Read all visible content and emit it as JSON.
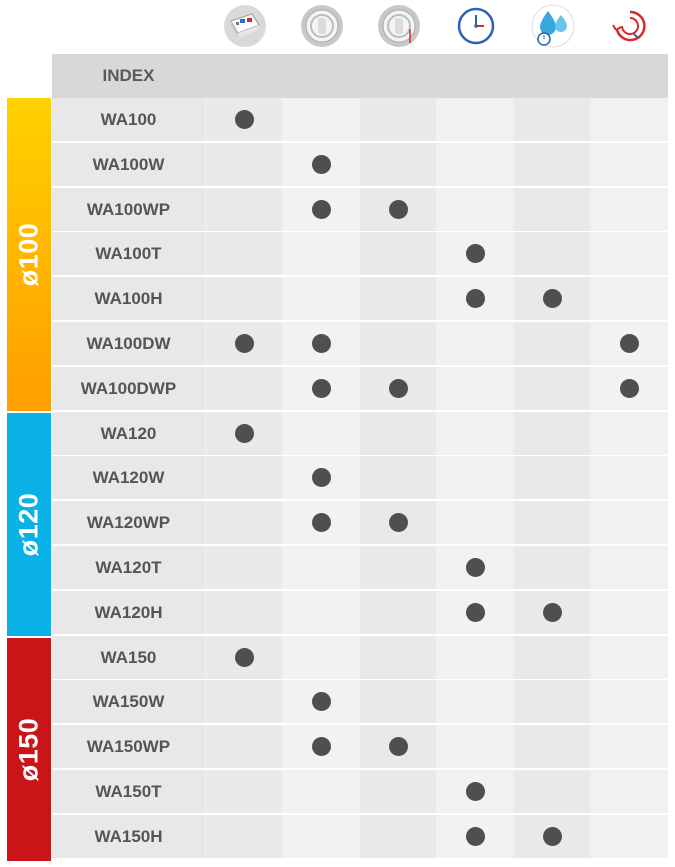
{
  "header": {
    "index_label": "INDEX"
  },
  "icons": [
    {
      "name": "wall-installation-icon"
    },
    {
      "name": "fan-white-icon"
    },
    {
      "name": "fan-pullcord-icon"
    },
    {
      "name": "timer-clock-icon"
    },
    {
      "name": "humidity-sensor-icon"
    },
    {
      "name": "backdraft-shutter-icon"
    }
  ],
  "groups": [
    {
      "label": "ø100",
      "color": "#ffb400"
    },
    {
      "label": "ø120",
      "color": "#0ab1e7"
    },
    {
      "label": "ø150",
      "color": "#c91518"
    }
  ],
  "rows": [
    {
      "name": "WA100",
      "features": [
        1,
        0,
        0,
        0,
        0,
        0
      ]
    },
    {
      "name": "WA100W",
      "features": [
        0,
        1,
        0,
        0,
        0,
        0
      ]
    },
    {
      "name": "WA100WP",
      "features": [
        0,
        1,
        1,
        0,
        0,
        0
      ]
    },
    {
      "name": "WA100T",
      "features": [
        0,
        0,
        0,
        1,
        0,
        0
      ]
    },
    {
      "name": "WA100H",
      "features": [
        0,
        0,
        0,
        1,
        1,
        0
      ]
    },
    {
      "name": "WA100DW",
      "features": [
        1,
        1,
        0,
        0,
        0,
        1
      ]
    },
    {
      "name": "WA100DWP",
      "features": [
        0,
        1,
        1,
        0,
        0,
        1
      ]
    },
    {
      "name": "WA120",
      "features": [
        1,
        0,
        0,
        0,
        0,
        0
      ]
    },
    {
      "name": "WA120W",
      "features": [
        0,
        1,
        0,
        0,
        0,
        0
      ]
    },
    {
      "name": "WA120WP",
      "features": [
        0,
        1,
        1,
        0,
        0,
        0
      ]
    },
    {
      "name": "WA120T",
      "features": [
        0,
        0,
        0,
        1,
        0,
        0
      ]
    },
    {
      "name": "WA120H",
      "features": [
        0,
        0,
        0,
        1,
        1,
        0
      ]
    },
    {
      "name": "WA150",
      "features": [
        1,
        0,
        0,
        0,
        0,
        0
      ]
    },
    {
      "name": "WA150W",
      "features": [
        0,
        1,
        0,
        0,
        0,
        0
      ]
    },
    {
      "name": "WA150WP",
      "features": [
        0,
        1,
        1,
        0,
        0,
        0
      ]
    },
    {
      "name": "WA150T",
      "features": [
        0,
        0,
        0,
        1,
        0,
        0
      ]
    },
    {
      "name": "WA150H",
      "features": [
        0,
        0,
        0,
        1,
        1,
        0
      ]
    }
  ]
}
